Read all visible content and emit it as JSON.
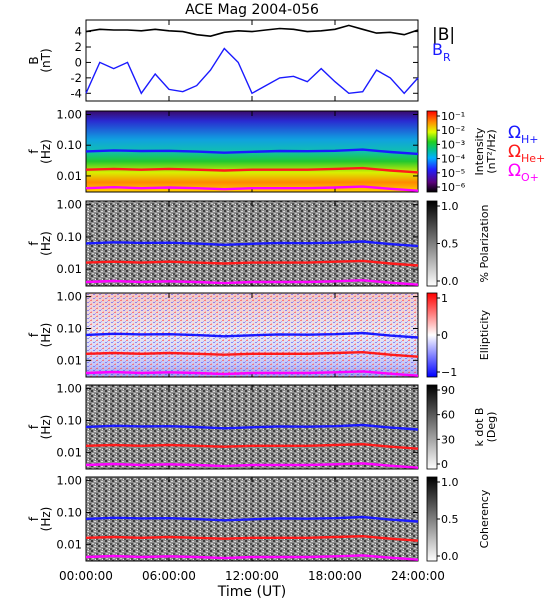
{
  "title": "ACE Mag 2004-056",
  "legend_top": {
    "b_mag": "|B|",
    "b_r": "B",
    "b_r_sub": "R"
  },
  "gyro_legend": [
    {
      "sym": "Ω",
      "sub": "H+",
      "color": "#1a1aff"
    },
    {
      "sym": "Ω",
      "sub": "He+",
      "color": "#ff1a1a"
    },
    {
      "sym": "Ω",
      "sub": "O+",
      "color": "#ff00ff"
    }
  ],
  "colors": {
    "b_mag": "#000000",
    "b_r": "#1a1aff",
    "h_plus": "#1a1aff",
    "he_plus": "#ff1a1a",
    "o_plus": "#ff00ff"
  },
  "xaxis": {
    "label": "Time (UT)",
    "ticks": [
      "00:00:00",
      "06:00:00",
      "12:00:00",
      "18:00:00",
      "24:00:00"
    ],
    "range_hours": [
      0,
      24
    ]
  },
  "panels": [
    {
      "key": "B",
      "ylabel": "B",
      "ylabel2": "(nT)",
      "yticks": [
        "4",
        "2",
        "0",
        "-2",
        "-4"
      ]
    },
    {
      "key": "intensity",
      "ylabel": "f",
      "ylabel2": "(Hz)",
      "yticks": [
        "1.00",
        "0.10",
        "0.01"
      ],
      "cbar_label": "Intensity",
      "cbar_label2": "(nT²/Hz)",
      "cbar_ticks": [
        "10⁻¹",
        "10⁻²",
        "10⁻³",
        "10⁻⁴",
        "10⁻⁵",
        "10⁻⁶"
      ]
    },
    {
      "key": "polarization",
      "ylabel": "f",
      "ylabel2": "(Hz)",
      "yticks": [
        "1.00",
        "0.10",
        "0.01"
      ],
      "cbar_label": "% Polarization",
      "cbar_ticks": [
        "1.0",
        "0.5",
        "0.0"
      ]
    },
    {
      "key": "ellipticity",
      "ylabel": "f",
      "ylabel2": "(Hz)",
      "yticks": [
        "1.00",
        "0.10",
        "0.01"
      ],
      "cbar_label": "Ellipticity",
      "cbar_ticks": [
        "1",
        "0",
        "−1"
      ]
    },
    {
      "key": "kdotb",
      "ylabel": "f",
      "ylabel2": "(Hz)",
      "yticks": [
        "1.00",
        "0.10",
        "0.01"
      ],
      "cbar_label": "k dot B",
      "cbar_label2": "(Deg)",
      "cbar_ticks": [
        "90",
        "60",
        "30",
        "0"
      ]
    },
    {
      "key": "coherency",
      "ylabel": "f",
      "ylabel2": "(Hz)",
      "yticks": [
        "1.00",
        "0.10",
        "0.01"
      ],
      "cbar_label": "Coherency",
      "cbar_ticks": [
        "1.0",
        "0.5",
        "0.0"
      ]
    }
  ],
  "chart_data": {
    "type": "line",
    "title": "ACE Mag 2004-056",
    "xlabel": "Time (UT)",
    "xlim_hours": [
      0,
      24
    ],
    "b_panel": {
      "ylabel": "B (nT)",
      "ylim": [
        -5,
        5.5
      ],
      "x_hours": [
        0,
        1,
        2,
        3,
        4,
        5,
        6,
        7,
        8,
        9,
        10,
        11,
        12,
        13,
        14,
        15,
        16,
        17,
        18,
        19,
        20,
        21,
        22,
        23,
        24
      ],
      "series": [
        {
          "name": "|B|",
          "values": [
            4.0,
            4.3,
            4.2,
            4.2,
            4.1,
            4.3,
            4.1,
            4.0,
            3.6,
            3.4,
            3.9,
            4.1,
            4.0,
            4.2,
            4.4,
            4.3,
            4.0,
            4.1,
            4.3,
            4.8,
            4.3,
            3.8,
            3.9,
            3.6,
            4.2
          ]
        },
        {
          "name": "B_R",
          "values": [
            -4.0,
            0.0,
            -0.8,
            0.0,
            -4.0,
            -1.5,
            -3.5,
            -3.8,
            -3.0,
            -1.0,
            1.8,
            0.0,
            -4.0,
            -3.0,
            -2.0,
            -1.8,
            -2.5,
            -0.8,
            -2.5,
            -4.0,
            -3.8,
            -1.0,
            -2.0,
            -4.0,
            -2.0
          ]
        }
      ]
    },
    "gyrofrequency_hz": {
      "x_hours": [
        0,
        2,
        4,
        6,
        8,
        10,
        12,
        14,
        16,
        18,
        20,
        22,
        24
      ],
      "H+": [
        0.063,
        0.068,
        0.065,
        0.066,
        0.062,
        0.057,
        0.061,
        0.065,
        0.064,
        0.066,
        0.072,
        0.06,
        0.052
      ],
      "He+": [
        0.016,
        0.017,
        0.016,
        0.017,
        0.016,
        0.015,
        0.016,
        0.016,
        0.016,
        0.017,
        0.018,
        0.015,
        0.013
      ],
      "O+": [
        0.004,
        0.0043,
        0.004,
        0.0042,
        0.004,
        0.0037,
        0.004,
        0.004,
        0.004,
        0.0042,
        0.0045,
        0.0038,
        0.0033
      ]
    },
    "spectrogram_ylim_hz": [
      0.003,
      1.3
    ]
  }
}
